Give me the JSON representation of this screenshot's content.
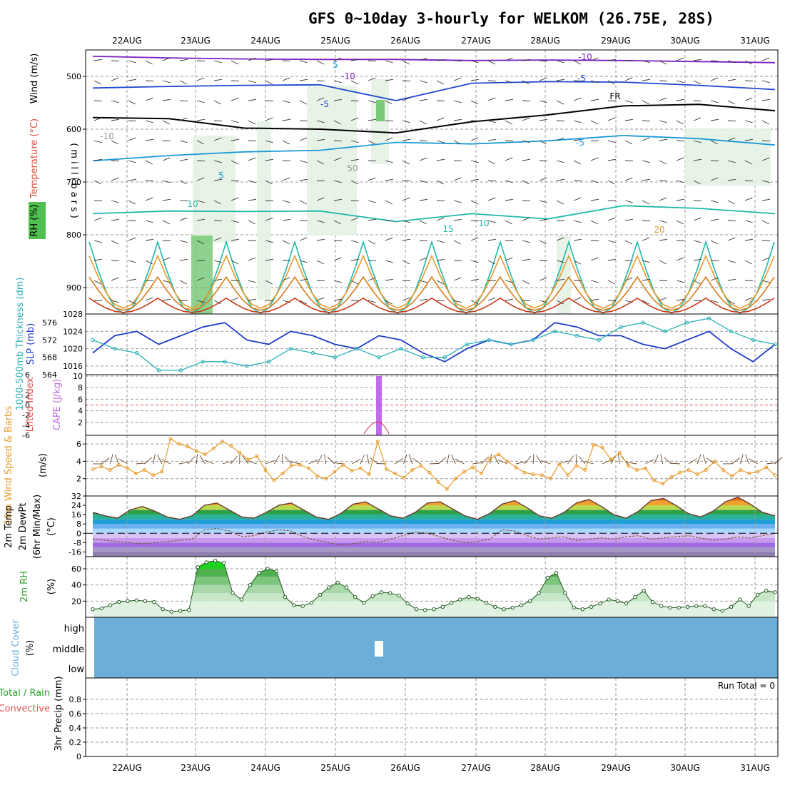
{
  "title": "GFS 0~10day 3-hourly for WELKOM (26.75E, 28S)",
  "dates": [
    "22AUG",
    "23AUG",
    "24AUG",
    "25AUG",
    "26AUG",
    "27AUG",
    "28AUG",
    "29AUG",
    "30AUG",
    "31AUG"
  ],
  "panels": {
    "upper": {
      "ylabel_wind": "Wind (m/s)",
      "ylabel_temp": "Temperature (°C)",
      "ylabel_rh": "RH (%)",
      "ylabel_p": "(millibars)",
      "contour_labels": [
        "-10",
        "-10",
        "-5",
        "-5",
        "-5",
        "5",
        "10",
        "10",
        "15",
        "20",
        "FR",
        "50",
        "-10",
        "5"
      ]
    },
    "slp": {
      "ylabel_left": "1000-500mb Thickness (dm)",
      "ylabel_right": "SLP (mb)"
    },
    "cape": {
      "ylabel_left": "Lifted Index",
      "ylabel_right": "CAPE (J/kg)"
    },
    "wind10": {
      "ylabel": "10m Wind Speed & Barbs",
      "units": "(m/s)"
    },
    "temp2m": {
      "ylabel": "2m Temp 2m DewPt (6hr Min/Max)",
      "units": "(°C)"
    },
    "rh2m": {
      "ylabel": "2m RH",
      "units": "(%)"
    },
    "cloud": {
      "ylabel": "Cloud Cover",
      "units": "(%)",
      "levels": [
        "high",
        "middle",
        "low"
      ]
    },
    "precip": {
      "ylabel_a": "Total / Rain",
      "ylabel_b": "Convective",
      "ylabel_c": "3hr Precip (mm)",
      "run_total": "Run Total = 0"
    }
  },
  "colors": {
    "grid": "#9a9a9a",
    "slp": "#1f3bc8",
    "thickness": "#2ab1b8",
    "cape": "#c06be8",
    "wind10": "#e89a2a",
    "rh2m": "#2aa02a",
    "cloud": "#6baed6"
  },
  "chart_data": [
    {
      "type": "line",
      "title": "Temperature / RH / Wind profile",
      "xlabel": "",
      "ylabel": "(millibars)",
      "ylim": [
        950,
        450
      ],
      "yticks": [
        500,
        600,
        700,
        800,
        900
      ],
      "series": [
        {
          "name": "-10C",
          "values": [
            462,
            465,
            467,
            468,
            468,
            470,
            469,
            470,
            472,
            474
          ]
        },
        {
          "name": "-5C",
          "values": [
            522,
            519,
            517,
            516,
            546,
            513,
            510,
            511,
            517,
            525
          ]
        },
        {
          "name": "FR",
          "values": [
            578,
            580,
            598,
            600,
            607,
            586,
            573,
            556,
            553,
            565
          ]
        },
        {
          "name": "5C",
          "values": [
            660,
            650,
            643,
            640,
            625,
            628,
            622,
            612,
            618,
            630
          ]
        },
        {
          "name": "10C",
          "values": [
            760,
            755,
            756,
            755,
            775,
            760,
            770,
            745,
            750,
            760
          ]
        }
      ]
    },
    {
      "type": "line",
      "title": "SLP and 1000-500mb Thickness",
      "categories_unit": "3-hourly",
      "series": [
        {
          "name": "SLP (mb)",
          "axis": "right",
          "ylim": [
            1014,
            1028
          ],
          "values": [
            1019,
            1023,
            1024,
            1021,
            1023,
            1025,
            1026,
            1022,
            1021,
            1024,
            1023,
            1021,
            1020,
            1023,
            1022,
            1019,
            1017,
            1020,
            1022,
            1021,
            1022,
            1026,
            1025,
            1023,
            1023,
            1021,
            1020,
            1022,
            1024,
            1020,
            1017,
            1021
          ]
        },
        {
          "name": "Thickness (dm)",
          "axis": "left",
          "ylim": [
            564,
            578
          ],
          "values": [
            572,
            570,
            569,
            565,
            565,
            567,
            567,
            566,
            567,
            570,
            569,
            568,
            570,
            568,
            570,
            568,
            568,
            571,
            572,
            571,
            572,
            574,
            573,
            572,
            575,
            576,
            574,
            576,
            577,
            574,
            572,
            571
          ]
        }
      ],
      "yticks_left": [
        564,
        568,
        572,
        576
      ],
      "yticks_right": [
        1016,
        1020,
        1024,
        1028
      ]
    },
    {
      "type": "bar",
      "title": "CAPE and Lifted Index",
      "yticks_left": [
        6,
        2,
        0,
        -2,
        -4,
        -6
      ],
      "yticks_right": [
        2,
        4,
        6,
        8,
        10
      ],
      "cape_bar": {
        "x": "25AUG 15Z",
        "value": 10
      },
      "li_zero_line": 0
    },
    {
      "type": "line",
      "title": "10m Wind Speed",
      "ylim": [
        0,
        7
      ],
      "yticks": [
        2,
        4,
        6
      ],
      "values": [
        3.1,
        3.4,
        3.0,
        3.6,
        3.2,
        2.6,
        3.0,
        2.4,
        2.8,
        6.6,
        6.0,
        5.7,
        5.2,
        4.8,
        5.5,
        6.3,
        5.8,
        5.0,
        4.2,
        4.6,
        3.0,
        1.8,
        2.6,
        3.5,
        3.6,
        3.2,
        2.3,
        2.0,
        2.8,
        3.6,
        2.9,
        3.2,
        2.5,
        6.3,
        3.1,
        2.6,
        2.1,
        3.0,
        3.5,
        2.7,
        1.6,
        0.8,
        2.0,
        2.8,
        3.3,
        2.6,
        4.3,
        4.8,
        4.0,
        3.3,
        2.7,
        2.5,
        2.4,
        2.0,
        3.7,
        2.4,
        3.5,
        3.0,
        5.9,
        5.6,
        4.2,
        5.0,
        3.5,
        3.0,
        3.2,
        1.8,
        1.4,
        2.2,
        2.7,
        3.0,
        2.5,
        3.0,
        4.0,
        3.0,
        2.3,
        3.0,
        2.6,
        2.8,
        3.3,
        2.4
      ]
    },
    {
      "type": "area",
      "title": "2m Temperature and DewPoint",
      "ylim": [
        -20,
        32
      ],
      "yticks": [
        32,
        24,
        16,
        8,
        0,
        -8,
        -16
      ],
      "series": [
        {
          "name": "2m Temp",
          "values": [
            18,
            15,
            13,
            20,
            23,
            19,
            14,
            12,
            15,
            24,
            26,
            20,
            14,
            13,
            18,
            24,
            26,
            20,
            14,
            12,
            17,
            25,
            27,
            21,
            15,
            13,
            18,
            26,
            27,
            21,
            15,
            12,
            17,
            25,
            28,
            22,
            15,
            13,
            18,
            26,
            29,
            23,
            16,
            13,
            19,
            28,
            30,
            24,
            17,
            14,
            19,
            27,
            31,
            25,
            18,
            15
          ]
        },
        {
          "name": "2m DewPt",
          "values": [
            -5,
            -6,
            -7,
            -8,
            -9,
            -8,
            -7,
            -6,
            -5,
            3,
            4,
            2,
            -3,
            -2,
            1,
            3,
            2,
            -3,
            -6,
            -8,
            -10,
            -9,
            -7,
            -8,
            -5,
            -2,
            1,
            0,
            -3,
            -6,
            -8,
            -7,
            -5,
            3,
            2,
            -2,
            -5,
            -4,
            -3,
            -6,
            -5,
            -4,
            -5,
            -3,
            -2,
            -5,
            -4,
            -3,
            -2,
            -4,
            -6,
            -5,
            -3,
            -4,
            -2,
            0
          ]
        }
      ]
    },
    {
      "type": "area",
      "title": "2m RH",
      "ylim": [
        0,
        75
      ],
      "yticks": [
        20,
        40,
        60
      ],
      "values": [
        10,
        11,
        15,
        19,
        20,
        21,
        20,
        19,
        10,
        7,
        8,
        9,
        62,
        68,
        70,
        67,
        30,
        22,
        40,
        55,
        60,
        57,
        25,
        15,
        14,
        18,
        28,
        37,
        43,
        37,
        25,
        18,
        26,
        31,
        30,
        27,
        17,
        10,
        9,
        10,
        13,
        18,
        22,
        25,
        23,
        18,
        13,
        10,
        12,
        15,
        20,
        30,
        49,
        55,
        30,
        12,
        10,
        13,
        17,
        22,
        20,
        17,
        25,
        33,
        19,
        14,
        12,
        12,
        13,
        14,
        14,
        10,
        8,
        13,
        22,
        14,
        28,
        33,
        31
      ]
    },
    {
      "type": "heatmap",
      "title": "Cloud Cover",
      "levels": [
        "high",
        "middle",
        "low"
      ],
      "value": 100,
      "gap": {
        "x": "25AUG 15Z",
        "level": "middle"
      }
    },
    {
      "type": "bar",
      "title": "3hr Precip",
      "ylim": [
        0,
        1
      ],
      "yticks": [
        0,
        0.2,
        0.4,
        0.6,
        0.8
      ],
      "values": [],
      "run_total": 0
    }
  ]
}
